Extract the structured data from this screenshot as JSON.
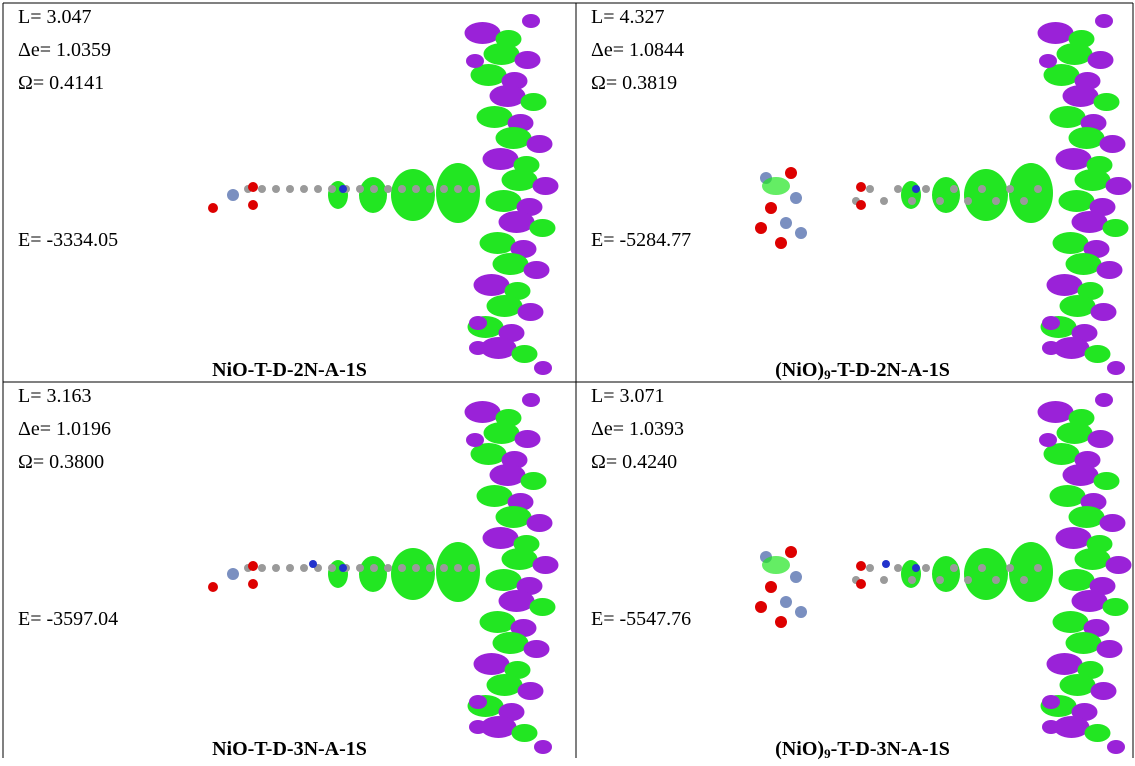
{
  "table": {
    "rows": [
      [
        {
          "L": "L= 3.047",
          "de": "Δe= 1.0359",
          "omega": "Ω= 0.4141",
          "E": "E= -3334.05",
          "caption": [
            "NiO-T-D-2N-A-1S"
          ]
        },
        {
          "L": "L= 4.327",
          "de": "Δe= 1.0844",
          "omega": "Ω= 0.3819",
          "E": "E= -5284.77",
          "caption": [
            "(NiO)",
            "9",
            "-T-D-2N-A-1S"
          ]
        }
      ],
      [
        {
          "L": "L= 3.163",
          "de": "Δe= 1.0196",
          "omega": "Ω= 0.3800",
          "E": "E= -3597.04",
          "caption": [
            "NiO-T-D-3N-A-1S"
          ]
        },
        {
          "L": "L= 3.071",
          "de": "Δe= 1.0393",
          "omega": "Ω= 0.4240",
          "E": "E= -5547.76",
          "caption": [
            "(NiO)",
            "9",
            "-T-D-3N-A-1S"
          ]
        }
      ]
    ]
  }
}
